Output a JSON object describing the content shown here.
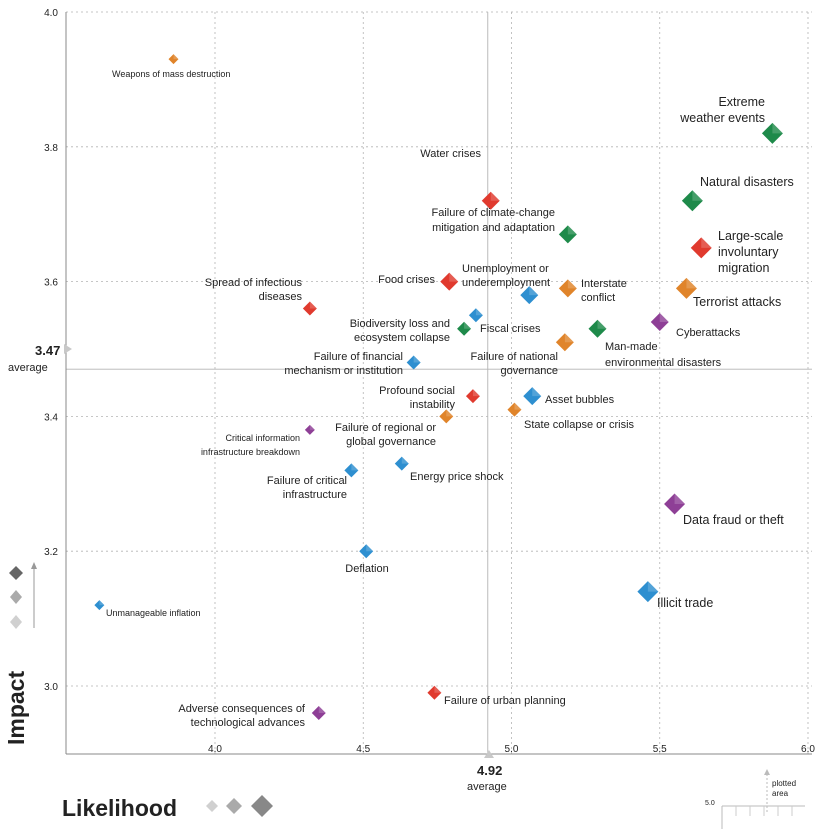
{
  "chart_data": {
    "type": "scatter",
    "xlabel": "Likelihood",
    "ylabel": "Impact",
    "xlim": [
      3.5,
      6.0
    ],
    "ylim": [
      2.9,
      4.0
    ],
    "x_ticks": [
      "4.0",
      "4.5",
      "5.0",
      "5.5",
      "6.0"
    ],
    "y_ticks": [
      "4.0",
      "3.8",
      "3.6",
      "3.4",
      "3.2",
      "3.0"
    ],
    "averages": {
      "x": 4.92,
      "x_label": "4.92",
      "x_caption": "average",
      "y": 3.47,
      "y_label": "3.47",
      "y_caption": "average"
    },
    "legend_text": {
      "plotted_area": "plotted area",
      "scale_value": "5.0"
    },
    "colors": {
      "environmental": "#1e8a4a",
      "geopolitical": "#e0842a",
      "societal": "#e03a2e",
      "economic": "#2e8fd0",
      "technological": "#8e3f96",
      "grid": "#b4b4b4",
      "axis": "#888888"
    },
    "points": [
      {
        "label": "Weapons of mass destruction",
        "x": 3.86,
        "y": 3.93,
        "size": 0,
        "category": "geopolitical"
      },
      {
        "label": "Extreme weather events",
        "x": 5.88,
        "y": 3.82,
        "size": 3,
        "category": "environmental"
      },
      {
        "label": "Water crises",
        "x": 4.93,
        "y": 3.72,
        "size": 2,
        "category": "societal"
      },
      {
        "label": "Natural disasters",
        "x": 5.61,
        "y": 3.72,
        "size": 3,
        "category": "environmental"
      },
      {
        "label": "Failure of climate-change mitigation and adaptation",
        "x": 5.19,
        "y": 3.67,
        "size": 2,
        "category": "environmental"
      },
      {
        "label": "Large-scale involuntary migration",
        "x": 5.64,
        "y": 3.65,
        "size": 3,
        "category": "societal"
      },
      {
        "label": "Food crises",
        "x": 4.79,
        "y": 3.6,
        "size": 2,
        "category": "societal"
      },
      {
        "label": "Unemployment or underemployment",
        "x": 5.06,
        "y": 3.58,
        "size": 2,
        "category": "economic"
      },
      {
        "label": "Interstate conflict",
        "x": 5.19,
        "y": 3.59,
        "size": 2,
        "category": "geopolitical"
      },
      {
        "label": "Terrorist attacks",
        "x": 5.59,
        "y": 3.59,
        "size": 3,
        "category": "geopolitical"
      },
      {
        "label": "Spread of infectious diseases",
        "x": 4.32,
        "y": 3.56,
        "size": 1,
        "category": "societal"
      },
      {
        "label": "Fiscal crises",
        "x": 4.88,
        "y": 3.55,
        "size": 1,
        "category": "economic"
      },
      {
        "label": "Biodiversity loss and ecosystem collapse",
        "x": 4.84,
        "y": 3.53,
        "size": 1,
        "category": "environmental"
      },
      {
        "label": "Cyberattacks",
        "x": 5.5,
        "y": 3.54,
        "size": 2,
        "category": "technological"
      },
      {
        "label": "Man-made environmental disasters",
        "x": 5.29,
        "y": 3.53,
        "size": 2,
        "category": "environmental"
      },
      {
        "label": "Failure of national governance",
        "x": 5.18,
        "y": 3.51,
        "size": 2,
        "category": "geopolitical"
      },
      {
        "label": "Failure of financial mechanism or institution",
        "x": 4.67,
        "y": 3.48,
        "size": 1,
        "category": "economic"
      },
      {
        "label": "Profound social instability",
        "x": 4.87,
        "y": 3.43,
        "size": 1,
        "category": "societal"
      },
      {
        "label": "Asset bubbles",
        "x": 5.07,
        "y": 3.43,
        "size": 2,
        "category": "economic"
      },
      {
        "label": "Failure of regional or global governance",
        "x": 4.78,
        "y": 3.4,
        "size": 1,
        "category": "geopolitical"
      },
      {
        "label": "State collapse or crisis",
        "x": 5.01,
        "y": 3.41,
        "size": 1,
        "category": "geopolitical"
      },
      {
        "label": "Critical information infrastructure breakdown",
        "x": 4.32,
        "y": 3.38,
        "size": 0,
        "category": "technological"
      },
      {
        "label": "Energy price shock",
        "x": 4.63,
        "y": 3.33,
        "size": 1,
        "category": "economic"
      },
      {
        "label": "Failure of critical infrastructure",
        "x": 4.46,
        "y": 3.32,
        "size": 1,
        "category": "economic"
      },
      {
        "label": "Data fraud or theft",
        "x": 5.55,
        "y": 3.27,
        "size": 3,
        "category": "technological"
      },
      {
        "label": "Deflation",
        "x": 4.51,
        "y": 3.2,
        "size": 1,
        "category": "economic"
      },
      {
        "label": "Unmanageable inflation",
        "x": 3.61,
        "y": 3.12,
        "size": 0,
        "category": "economic"
      },
      {
        "label": "Illicit trade",
        "x": 5.46,
        "y": 3.14,
        "size": 3,
        "category": "economic"
      },
      {
        "label": "Failure of urban planning",
        "x": 4.74,
        "y": 2.99,
        "size": 1,
        "category": "societal"
      },
      {
        "label": "Adverse consequences of technological advances",
        "x": 4.35,
        "y": 2.96,
        "size": 1,
        "category": "technological"
      }
    ]
  }
}
